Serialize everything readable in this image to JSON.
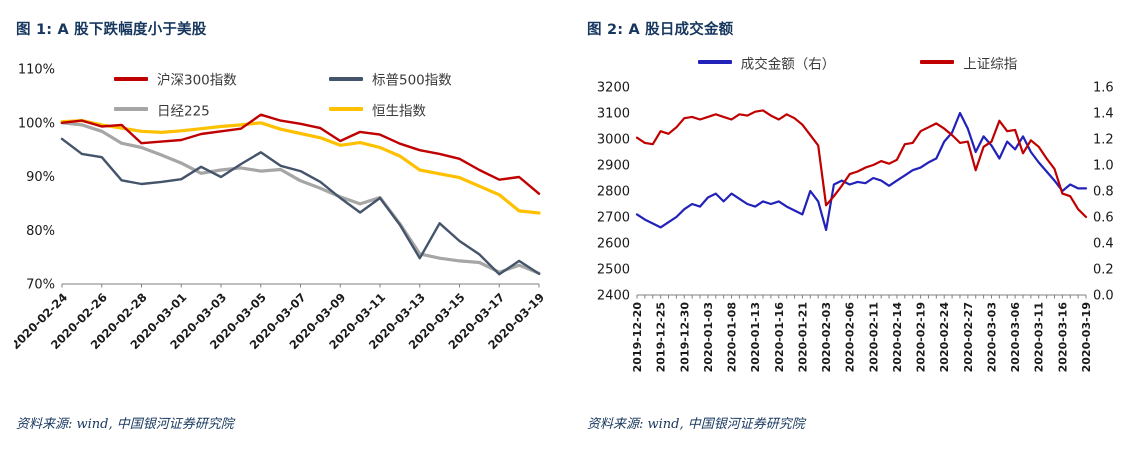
{
  "fig1": {
    "title": "图 1: A 股下跌幅度小于美股",
    "source": "资料来源: wind, 中国银河证券研究院"
  },
  "fig2": {
    "title": "图 2: A 股日成交金额",
    "source": "资料来源: wind, 中国银河证券研究院"
  },
  "colors": {
    "title_navy": "#17375e",
    "csi300_red": "#c00000",
    "sp500_slate": "#44546a",
    "nikkei_gray": "#a6a6a6",
    "hangseng_yellow": "#ffc000",
    "volume_blue": "#2222bb",
    "sse_red": "#c00000",
    "axis_gray": "#7f7f7f"
  },
  "chart_data": [
    {
      "type": "line",
      "title": "A 股下跌幅度小于美股",
      "grid": false,
      "legend_position": "top",
      "x_labels": [
        "2020-02-24",
        "2020-02-26",
        "2020-02-28",
        "2020-03-01",
        "2020-03-03",
        "2020-03-05",
        "2020-03-07",
        "2020-03-09",
        "2020-03-11",
        "2020-03-13",
        "2020-03-15",
        "2020-03-17",
        "2020-03-19"
      ],
      "label_every": 2,
      "tick_every": 2,
      "y_left": {
        "tick_labels": [
          "110%",
          "100%",
          "90%",
          "80%",
          "70%"
        ],
        "range": [
          110,
          70
        ]
      },
      "series": [
        {
          "name": "沪深300指数",
          "color": "#c00000",
          "width": 2.4,
          "axis": "left",
          "values": [
            100.0,
            100.4,
            99.3,
            99.6,
            96.2,
            96.5,
            96.8,
            97.9,
            98.4,
            98.9,
            101.5,
            100.4,
            99.8,
            99.0,
            96.6,
            98.3,
            97.8,
            96.1,
            94.9,
            94.2,
            93.3,
            91.2,
            89.4,
            89.9,
            86.8
          ]
        },
        {
          "name": "标普500指数",
          "color": "#44546a",
          "width": 2.4,
          "axis": "left",
          "values": [
            97.0,
            94.2,
            93.6,
            89.3,
            88.6,
            89.0,
            89.5,
            91.8,
            89.9,
            92.3,
            94.5,
            92.0,
            91.0,
            89.0,
            86.0,
            83.3,
            86.0,
            81.0,
            74.8,
            81.3,
            78.0,
            75.5,
            71.8,
            74.3,
            71.9
          ]
        },
        {
          "name": "日经225",
          "color": "#a6a6a6",
          "width": 3.2,
          "axis": "left",
          "values": [
            100.0,
            99.6,
            98.4,
            96.2,
            95.4,
            94.0,
            92.5,
            90.6,
            91.2,
            91.6,
            91.0,
            91.3,
            89.2,
            87.8,
            86.2,
            84.9,
            86.1,
            81.2,
            75.6,
            74.8,
            74.3,
            74.0,
            72.2,
            73.5,
            72.0
          ]
        },
        {
          "name": "恒生指数",
          "color": "#ffc000",
          "width": 3.2,
          "axis": "left",
          "values": [
            100.2,
            100.4,
            99.6,
            99.0,
            98.4,
            98.2,
            98.5,
            98.9,
            99.3,
            99.6,
            100.0,
            98.8,
            98.0,
            97.2,
            95.8,
            96.3,
            95.4,
            93.8,
            91.2,
            90.5,
            89.8,
            88.2,
            86.6,
            83.6,
            83.2
          ]
        }
      ]
    },
    {
      "type": "line",
      "title": "A 股日成交金额",
      "grid": false,
      "legend_position": "top",
      "x_labels": [
        "2019-12-20",
        "2019-12-25",
        "2019-12-30",
        "2020-01-03",
        "2020-01-08",
        "2020-01-13",
        "2020-01-16",
        "2020-01-21",
        "2020-02-03",
        "2020-02-06",
        "2020-02-11",
        "2020-02-14",
        "2020-02-19",
        "2020-02-24",
        "2020-02-27",
        "2020-03-03",
        "2020-03-06",
        "2020-03-11",
        "2020-03-16",
        "2020-03-19"
      ],
      "label_every": 3,
      "tick_every": 1,
      "y_left": {
        "tick_labels": [
          "3200",
          "3100",
          "3000",
          "2900",
          "2800",
          "2700",
          "2600",
          "2500",
          "2400"
        ],
        "range": [
          3200,
          2400
        ]
      },
      "y_right": {
        "tick_labels": [
          "1.6",
          "1.4",
          "1.2",
          "1.0",
          "0.8",
          "0.6",
          "0.4",
          "0.2",
          "0.0"
        ],
        "range": [
          1.6,
          0
        ]
      },
      "series": [
        {
          "name": "成交金额（右）",
          "color": "#2222bb",
          "width": 2.2,
          "axis": "right",
          "values": [
            0.62,
            0.58,
            0.55,
            0.52,
            0.56,
            0.6,
            0.66,
            0.7,
            0.68,
            0.75,
            0.78,
            0.72,
            0.78,
            0.74,
            0.7,
            0.68,
            0.72,
            0.7,
            0.72,
            0.68,
            0.65,
            0.62,
            0.8,
            0.72,
            0.5,
            0.85,
            0.88,
            0.85,
            0.87,
            0.86,
            0.9,
            0.88,
            0.84,
            0.88,
            0.92,
            0.96,
            0.98,
            1.02,
            1.05,
            1.18,
            1.25,
            1.4,
            1.28,
            1.1,
            1.22,
            1.15,
            1.05,
            1.18,
            1.12,
            1.22,
            1.1,
            1.02,
            0.95,
            0.88,
            0.8,
            0.85,
            0.82,
            0.82
          ]
        },
        {
          "name": "上证综指",
          "color": "#c00000",
          "width": 2.2,
          "axis": "left",
          "values": [
            3005,
            2985,
            2980,
            3030,
            3020,
            3045,
            3080,
            3085,
            3075,
            3085,
            3095,
            3085,
            3075,
            3095,
            3090,
            3105,
            3110,
            3090,
            3075,
            3095,
            3080,
            3055,
            3015,
            2975,
            2745,
            2780,
            2820,
            2865,
            2875,
            2890,
            2900,
            2915,
            2905,
            2920,
            2980,
            2985,
            3030,
            3045,
            3060,
            3040,
            3015,
            2985,
            2990,
            2880,
            2970,
            2990,
            3070,
            3030,
            3035,
            2945,
            2995,
            2970,
            2925,
            2885,
            2790,
            2780,
            2730,
            2700
          ]
        }
      ]
    }
  ]
}
